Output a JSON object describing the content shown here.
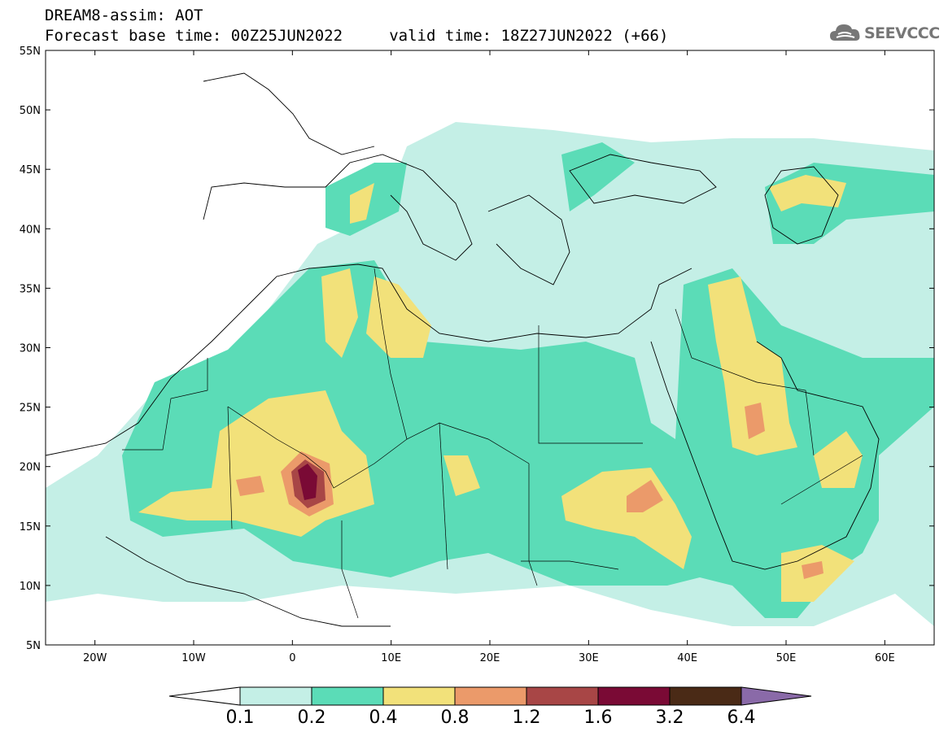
{
  "title": {
    "line1": "DREAM8-assim: AOT",
    "line2": "Forecast base time: 00Z25JUN2022     valid time: 18Z27JUN2022 (+66)"
  },
  "logo": {
    "text": "SEEVCCC",
    "icon": "cloud-logo-icon"
  },
  "map": {
    "lon_range": [
      -25,
      65
    ],
    "lat_range": [
      5,
      55
    ],
    "lat_ticks": [
      "5N",
      "10N",
      "15N",
      "20N",
      "25N",
      "30N",
      "35N",
      "40N",
      "45N",
      "50N",
      "55N"
    ],
    "lon_ticks": [
      "20W",
      "10W",
      "0",
      "10E",
      "20E",
      "30E",
      "40E",
      "50E",
      "60E"
    ],
    "features": [
      "country-borders",
      "coastlines",
      "aot-contours"
    ]
  },
  "colorbar": {
    "labels": [
      "0.1",
      "0.2",
      "0.4",
      "0.8",
      "1.2",
      "1.6",
      "3.2",
      "6.4"
    ],
    "colors": [
      "#ffffff",
      "#c4efe6",
      "#5bdcb7",
      "#f2e17a",
      "#eb9a6a",
      "#a84646",
      "#7a0a35",
      "#4a2a16",
      "#8a6aa8"
    ]
  }
}
